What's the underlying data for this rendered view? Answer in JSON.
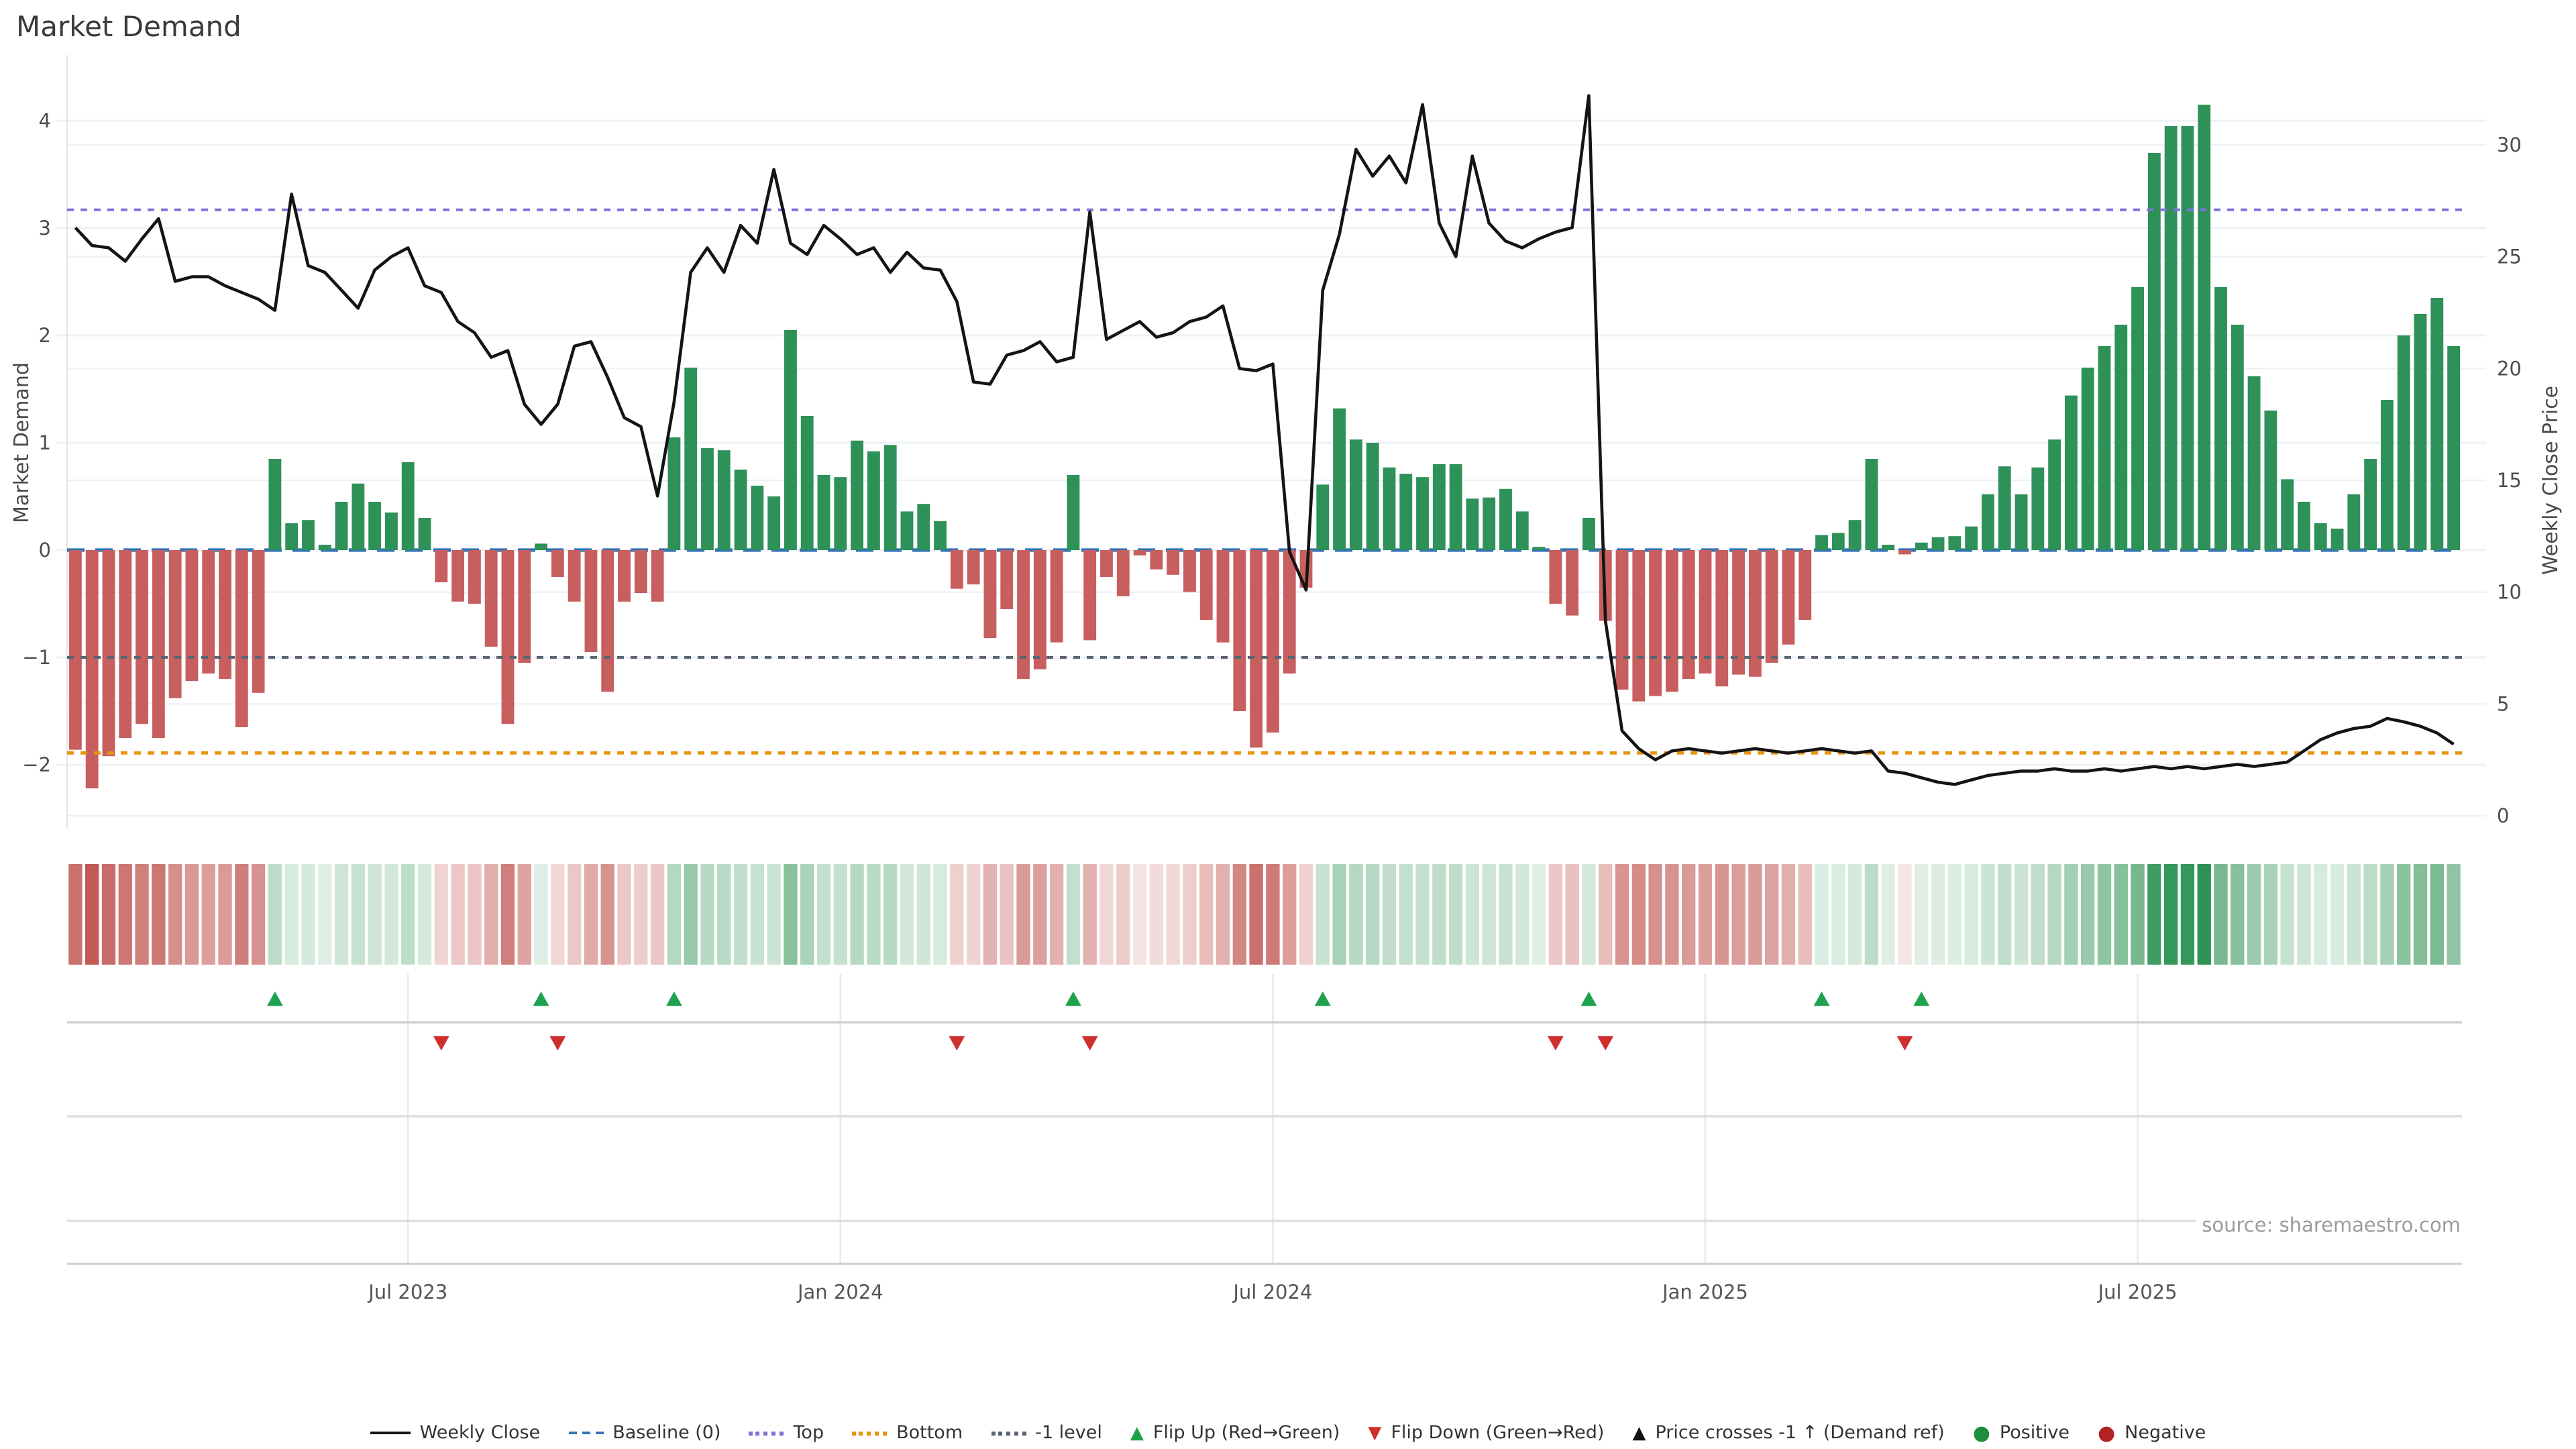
{
  "title": "Market Demand",
  "source_note": "source: sharemaestro.com",
  "axes": {
    "left_label": "Market Demand",
    "right_label": "Weekly Close Price",
    "left_tick_labels": [
      "4",
      "3",
      "2",
      "1",
      "0",
      "−1",
      "−2"
    ],
    "right_tick_labels": [
      "30",
      "25",
      "20",
      "15",
      "10",
      "5",
      "0"
    ],
    "x_tick_labels": [
      "Jul 2023",
      "Jan 2024",
      "Jul 2024",
      "Jan 2025",
      "Jul 2025"
    ]
  },
  "colors": {
    "bar_positive": "#2e9158",
    "bar_negative": "#c75f5f",
    "price_line": "#141414",
    "baseline": "#3573b5",
    "top_line": "#7b74da",
    "bottom_line": "#e8940c",
    "minus_one_line": "#5b6470",
    "flip_up_marker": "#1fa14d",
    "flip_down_marker": "#cf2e2e",
    "grid": "#edf1f7",
    "panel_grid": "#d9d9d9",
    "heat_green": "#2b9151",
    "heat_red": "#c05450"
  },
  "chart_data": {
    "type": "bar+line",
    "title": "Market Demand",
    "x_start": "2023-02-13",
    "x_freq": "weekly",
    "n_points": 144,
    "xlabel": "",
    "ylabel_left": "Market Demand",
    "ylabel_right": "Weekly Close Price",
    "demand_ylim": [
      -2.6,
      4.45
    ],
    "price_ylim": [
      0,
      32.5
    ],
    "demand_ticks": [
      4,
      3,
      2,
      1,
      0,
      -1,
      -2
    ],
    "price_ticks": [
      30,
      25,
      20,
      15,
      10,
      5,
      0
    ],
    "x_tick_weeks": [
      20,
      46,
      72,
      98,
      124
    ],
    "grid": "horizontal-only",
    "legend_position": "bottom-center",
    "reference_lines": {
      "baseline": 0,
      "top": 3.17,
      "bottom": -1.89,
      "minus_one": -1
    },
    "series": [
      {
        "name": "Market Demand (weekly bars)",
        "axis": "left",
        "values": [
          -1.86,
          -2.22,
          -1.92,
          -1.75,
          -1.62,
          -1.75,
          -1.38,
          -1.22,
          -1.15,
          -1.2,
          -1.65,
          -1.33,
          0.85,
          0.25,
          0.28,
          0.05,
          0.45,
          0.62,
          0.45,
          0.35,
          0.82,
          0.3,
          -0.3,
          -0.48,
          -0.5,
          -0.9,
          -1.62,
          -1.05,
          0.06,
          -0.25,
          -0.48,
          -0.95,
          -1.32,
          -0.48,
          -0.4,
          -0.48,
          1.05,
          1.7,
          0.95,
          0.93,
          0.75,
          0.6,
          0.5,
          2.05,
          1.25,
          0.7,
          0.68,
          1.02,
          0.92,
          0.98,
          0.36,
          0.43,
          0.27,
          -0.36,
          -0.32,
          -0.82,
          -0.55,
          -1.2,
          -1.11,
          -0.86,
          0.7,
          -0.84,
          -0.25,
          -0.43,
          -0.05,
          -0.18,
          -0.23,
          -0.39,
          -0.65,
          -0.86,
          -1.5,
          -1.84,
          -1.7,
          -1.15,
          -0.35,
          0.61,
          1.32,
          1.03,
          1.0,
          0.77,
          0.71,
          0.68,
          0.8,
          0.8,
          0.48,
          0.49,
          0.57,
          0.36,
          0.03,
          -0.5,
          -0.61,
          0.3,
          -0.66,
          -1.3,
          -1.41,
          -1.36,
          -1.32,
          -1.2,
          -1.15,
          -1.27,
          -1.16,
          -1.18,
          -1.05,
          -0.88,
          -0.65,
          0.14,
          0.16,
          0.28,
          0.85,
          0.05,
          -0.04,
          0.07,
          0.12,
          0.13,
          0.22,
          0.52,
          0.78,
          0.52,
          0.77,
          1.03,
          1.44,
          1.7,
          1.9,
          2.1,
          2.45,
          3.7,
          3.95,
          3.95,
          4.15,
          2.45,
          2.1,
          1.62,
          1.3,
          0.66,
          0.45,
          0.25,
          0.2,
          0.52,
          0.85,
          1.4,
          2.0,
          2.2,
          2.35,
          1.9
        ]
      },
      {
        "name": "Weekly Close",
        "axis": "right",
        "values": [
          26.3,
          25.5,
          25.4,
          24.8,
          25.8,
          26.7,
          23.9,
          24.1,
          24.1,
          23.7,
          23.4,
          23.1,
          22.6,
          27.8,
          24.6,
          24.3,
          23.5,
          22.7,
          24.4,
          25.0,
          25.4,
          23.7,
          23.4,
          22.1,
          21.6,
          20.5,
          20.8,
          18.4,
          17.5,
          18.4,
          21.0,
          21.2,
          19.6,
          17.8,
          17.4,
          14.3,
          18.5,
          24.3,
          25.4,
          24.3,
          26.4,
          25.6,
          28.9,
          25.6,
          25.1,
          26.4,
          25.8,
          25.1,
          25.4,
          24.3,
          25.2,
          24.5,
          24.4,
          23.0,
          19.4,
          19.3,
          20.6,
          20.8,
          21.2,
          20.3,
          20.5,
          27.0,
          21.3,
          21.7,
          22.1,
          21.4,
          21.6,
          22.1,
          22.3,
          22.8,
          20.0,
          19.9,
          20.2,
          11.8,
          10.1,
          23.5,
          26.0,
          29.8,
          28.6,
          29.5,
          28.3,
          31.8,
          26.5,
          25.0,
          29.5,
          26.5,
          25.7,
          25.4,
          25.8,
          26.1,
          26.3,
          32.2,
          8.7,
          3.8,
          3.0,
          2.5,
          2.9,
          3.0,
          2.9,
          2.8,
          2.9,
          3.0,
          2.9,
          2.8,
          2.9,
          3.0,
          2.9,
          2.8,
          2.9,
          2.0,
          1.9,
          1.7,
          1.5,
          1.4,
          1.6,
          1.8,
          1.9,
          2.0,
          2.0,
          2.1,
          2.0,
          2.0,
          2.1,
          2.0,
          2.1,
          2.2,
          2.1,
          2.2,
          2.1,
          2.2,
          2.3,
          2.2,
          2.3,
          2.4,
          2.9,
          3.4,
          3.7,
          3.9,
          4.0,
          4.35,
          4.2,
          4.0,
          3.7,
          3.2
        ]
      }
    ],
    "events": {
      "flip_up_weeks": [
        12,
        28,
        36,
        60,
        75,
        91,
        105,
        111
      ],
      "flip_down_weeks": [
        22,
        29,
        53,
        61,
        89,
        92,
        110
      ],
      "price_cross_minus1_weeks": []
    },
    "heatmap": {
      "description": "weekly demand intensity strip, red negative to green positive, shade scales with magnitude",
      "derived_from": "Market Demand (weekly bars)"
    }
  },
  "legend": [
    {
      "label": "Weekly Close",
      "glyph": "solid",
      "color": "#141414"
    },
    {
      "label": "Baseline (0)",
      "glyph": "dashed",
      "color": "#3573b5"
    },
    {
      "label": "Top",
      "glyph": "dotted",
      "color": "#7b74da"
    },
    {
      "label": "Bottom",
      "glyph": "dotted",
      "color": "#e8940c"
    },
    {
      "label": "-1 level",
      "glyph": "dotted",
      "color": "#5b6470"
    },
    {
      "label": "Flip Up (Red→Green)",
      "glyph": "tri-up",
      "color": "#1fa14d"
    },
    {
      "label": "Flip Down (Green→Red)",
      "glyph": "tri-down",
      "color": "#cf2e2e"
    },
    {
      "label": "Price crosses -1 ↑ (Demand ref)",
      "glyph": "tri-up",
      "color": "#111111"
    },
    {
      "label": "Positive",
      "glyph": "dot",
      "color": "#1e8e3e"
    },
    {
      "label": "Negative",
      "glyph": "dot",
      "color": "#b22222"
    }
  ]
}
